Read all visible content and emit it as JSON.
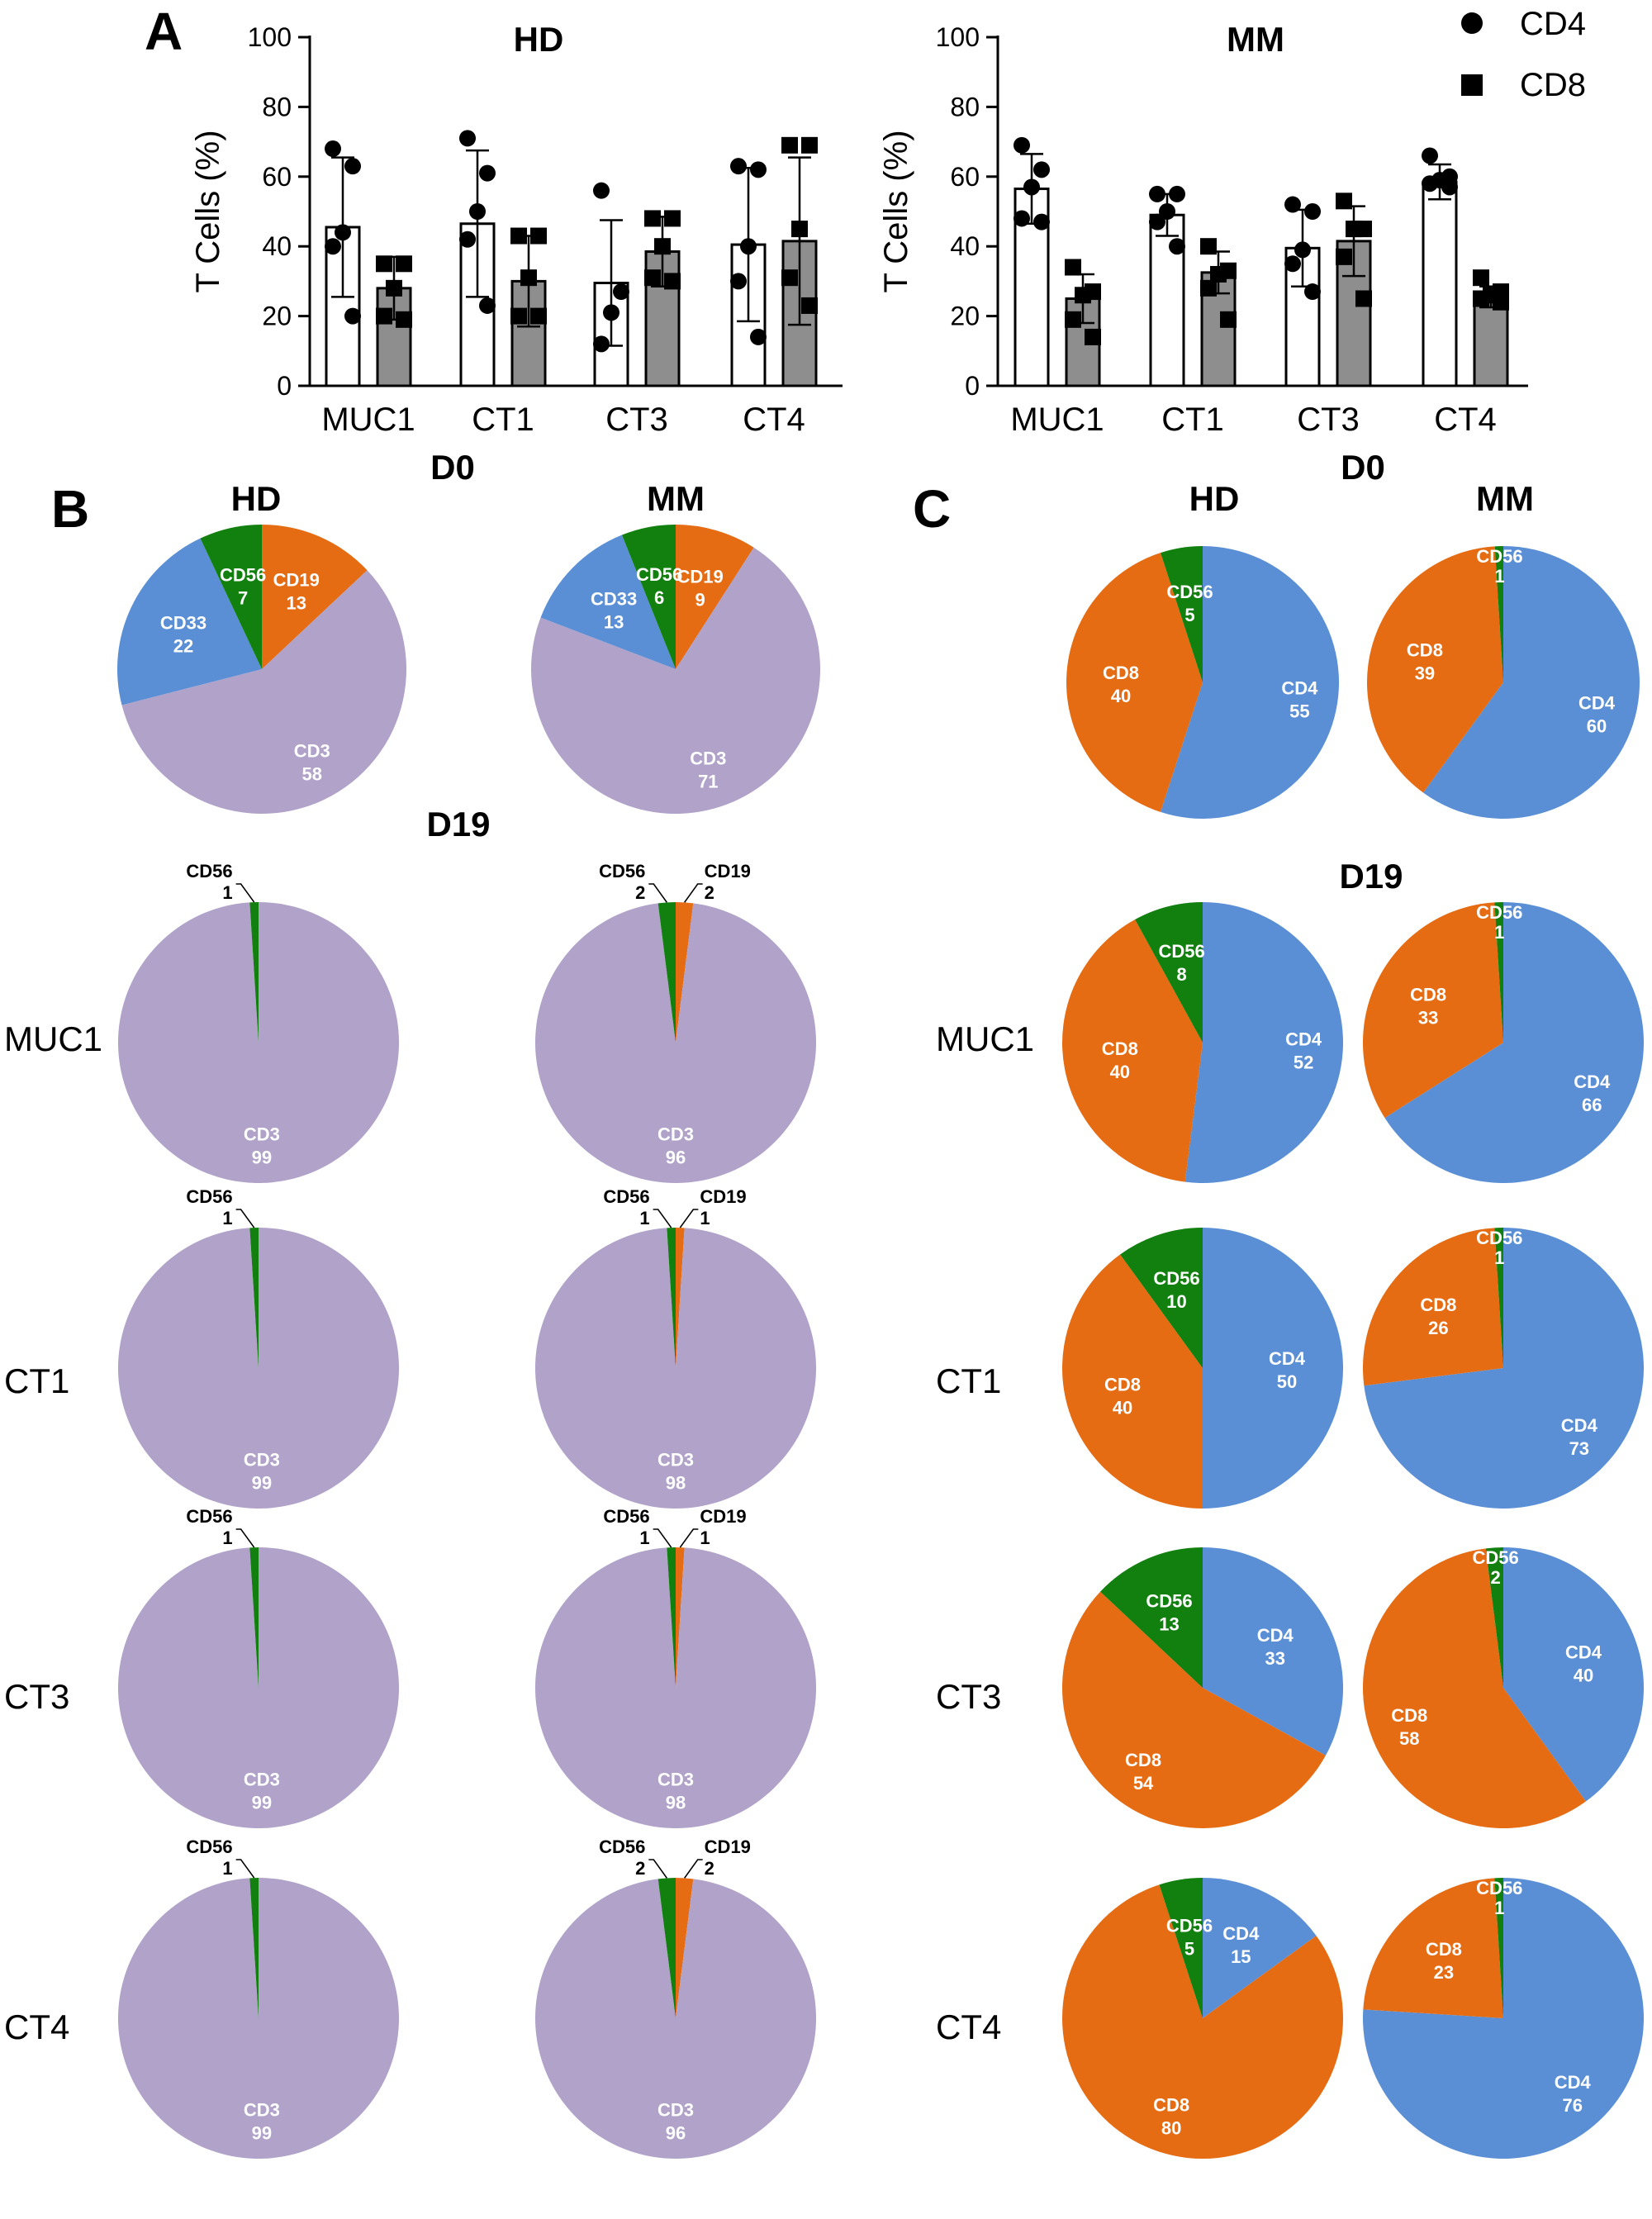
{
  "colors": {
    "CD3": "#b0a2c8",
    "CD33": "#5a8fd6",
    "CD56": "#11800f",
    "CD19": "#e56c12",
    "CD4": "#5a8fd6",
    "CD8": "#e56c12",
    "bar_cd4": "#ffffff",
    "bar_cd8": "#8e8e8e"
  },
  "panel_labels": [
    "A",
    "B",
    "C"
  ],
  "row_labels": [
    "MUC1",
    "CT1",
    "CT3",
    "CT4"
  ],
  "panel_a": {
    "legend": [
      "CD4",
      "CD8"
    ],
    "ylabel": "T Cells (%)"
  },
  "panel_b": {
    "d0_label": "D0",
    "d19_label": "D19",
    "col_labels": [
      "HD",
      "MM"
    ]
  },
  "panel_c": {
    "d0_label": "D0",
    "d19_label": "D19",
    "col_labels": [
      "HD",
      "MM"
    ]
  },
  "chart_data": [
    {
      "type": "bar",
      "title": "HD",
      "ylabel": "T Cells (%)",
      "ylim": [
        0,
        100
      ],
      "yticks": [
        0,
        20,
        40,
        60,
        80,
        100
      ],
      "categories": [
        "MUC1",
        "CT1",
        "CT3",
        "CT4"
      ],
      "series": [
        {
          "name": "CD4",
          "values": [
            45.5,
            46.5,
            29.5,
            40.5
          ],
          "sd": [
            20,
            21,
            18,
            22
          ],
          "points": [
            [
              68,
              63,
              44,
              40,
              20
            ],
            [
              71,
              61,
              50,
              42,
              23
            ],
            [
              56,
              27,
              21,
              12
            ],
            [
              63,
              62,
              40,
              30,
              14
            ]
          ]
        },
        {
          "name": "CD8",
          "values": [
            28,
            30,
            38.5,
            41.5
          ],
          "sd": [
            9,
            13,
            10,
            24
          ],
          "points": [
            [
              35,
              35,
              28,
              20,
              19
            ],
            [
              43,
              43,
              31,
              20,
              20
            ],
            [
              48,
              48,
              40,
              31,
              30
            ],
            [
              69,
              69,
              45,
              31,
              23
            ]
          ]
        }
      ]
    },
    {
      "type": "bar",
      "title": "MM",
      "ylabel": "T Cells (%)",
      "ylim": [
        0,
        100
      ],
      "yticks": [
        0,
        20,
        40,
        60,
        80,
        100
      ],
      "categories": [
        "MUC1",
        "CT1",
        "CT3",
        "CT4"
      ],
      "series": [
        {
          "name": "CD4",
          "values": [
            56.5,
            49,
            39.5,
            58.5
          ],
          "sd": [
            10,
            6,
            11,
            5
          ],
          "points": [
            [
              69,
              62,
              57,
              48,
              47
            ],
            [
              55,
              55,
              50,
              47,
              40
            ],
            [
              52,
              50,
              39,
              35,
              27
            ],
            [
              66,
              60,
              59,
              58,
              57
            ]
          ]
        },
        {
          "name": "CD8",
          "values": [
            25,
            32.5,
            41.5,
            25.5
          ],
          "sd": [
            7,
            6,
            10,
            3
          ],
          "points": [
            [
              34,
              27,
              26,
              19,
              14
            ],
            [
              40,
              33,
              32,
              28,
              19
            ],
            [
              53,
              45,
              45,
              37,
              25
            ],
            [
              31,
              27,
              26,
              25,
              24
            ]
          ]
        }
      ]
    },
    {
      "type": "pie",
      "panel": "B",
      "time": "D0",
      "group": "HD",
      "slices": [
        {
          "name": "CD19",
          "value": 13
        },
        {
          "name": "CD3",
          "value": 58
        },
        {
          "name": "CD33",
          "value": 22
        },
        {
          "name": "CD56",
          "value": 7
        }
      ]
    },
    {
      "type": "pie",
      "panel": "B",
      "time": "D0",
      "group": "MM",
      "slices": [
        {
          "name": "CD19",
          "value": 9
        },
        {
          "name": "CD3",
          "value": 71
        },
        {
          "name": "CD33",
          "value": 13
        },
        {
          "name": "CD56",
          "value": 6
        }
      ]
    },
    {
      "type": "pie",
      "panel": "B",
      "time": "D19",
      "row": "MUC1",
      "group": "HD",
      "slices": [
        {
          "name": "CD3",
          "value": 99
        },
        {
          "name": "CD56",
          "value": 1
        }
      ]
    },
    {
      "type": "pie",
      "panel": "B",
      "time": "D19",
      "row": "MUC1",
      "group": "MM",
      "slices": [
        {
          "name": "CD19",
          "value": 2
        },
        {
          "name": "CD3",
          "value": 96
        },
        {
          "name": "CD56",
          "value": 2
        }
      ]
    },
    {
      "type": "pie",
      "panel": "B",
      "time": "D19",
      "row": "CT1",
      "group": "HD",
      "slices": [
        {
          "name": "CD3",
          "value": 99
        },
        {
          "name": "CD56",
          "value": 1
        }
      ]
    },
    {
      "type": "pie",
      "panel": "B",
      "time": "D19",
      "row": "CT1",
      "group": "MM",
      "slices": [
        {
          "name": "CD19",
          "value": 1
        },
        {
          "name": "CD3",
          "value": 98
        },
        {
          "name": "CD56",
          "value": 1
        }
      ]
    },
    {
      "type": "pie",
      "panel": "B",
      "time": "D19",
      "row": "CT3",
      "group": "HD",
      "slices": [
        {
          "name": "CD3",
          "value": 99
        },
        {
          "name": "CD56",
          "value": 1
        }
      ]
    },
    {
      "type": "pie",
      "panel": "B",
      "time": "D19",
      "row": "CT3",
      "group": "MM",
      "slices": [
        {
          "name": "CD19",
          "value": 1
        },
        {
          "name": "CD3",
          "value": 98
        },
        {
          "name": "CD56",
          "value": 1
        }
      ]
    },
    {
      "type": "pie",
      "panel": "B",
      "time": "D19",
      "row": "CT4",
      "group": "HD",
      "slices": [
        {
          "name": "CD3",
          "value": 99
        },
        {
          "name": "CD56",
          "value": 1
        }
      ]
    },
    {
      "type": "pie",
      "panel": "B",
      "time": "D19",
      "row": "CT4",
      "group": "MM",
      "slices": [
        {
          "name": "CD19",
          "value": 2.0
        },
        {
          "name": "CD3",
          "value": 96
        },
        {
          "name": "CD56",
          "value": 2
        }
      ]
    },
    {
      "type": "pie",
      "panel": "C",
      "time": "D0",
      "group": "HD",
      "slices": [
        {
          "name": "CD4",
          "value": 55
        },
        {
          "name": "CD8",
          "value": 40
        },
        {
          "name": "CD56",
          "value": 5
        }
      ]
    },
    {
      "type": "pie",
      "panel": "C",
      "time": "D0",
      "group": "MM",
      "slices": [
        {
          "name": "CD4",
          "value": 60
        },
        {
          "name": "CD8",
          "value": 39
        },
        {
          "name": "CD56",
          "value": 1
        }
      ]
    },
    {
      "type": "pie",
      "panel": "C",
      "time": "D19",
      "row": "MUC1",
      "group": "HD",
      "slices": [
        {
          "name": "CD4",
          "value": 52
        },
        {
          "name": "CD8",
          "value": 40
        },
        {
          "name": "CD56",
          "value": 8
        }
      ]
    },
    {
      "type": "pie",
      "panel": "C",
      "time": "D19",
      "row": "MUC1",
      "group": "MM",
      "slices": [
        {
          "name": "CD4",
          "value": 66
        },
        {
          "name": "CD8",
          "value": 33
        },
        {
          "name": "CD56",
          "value": 1
        }
      ]
    },
    {
      "type": "pie",
      "panel": "C",
      "time": "D19",
      "row": "CT1",
      "group": "HD",
      "slices": [
        {
          "name": "CD4",
          "value": 50
        },
        {
          "name": "CD8",
          "value": 40
        },
        {
          "name": "CD56",
          "value": 10
        }
      ]
    },
    {
      "type": "pie",
      "panel": "C",
      "time": "D19",
      "row": "CT1",
      "group": "MM",
      "slices": [
        {
          "name": "CD4",
          "value": 73
        },
        {
          "name": "CD8",
          "value": 26
        },
        {
          "name": "CD56",
          "value": 1
        }
      ]
    },
    {
      "type": "pie",
      "panel": "C",
      "time": "D19",
      "row": "CT3",
      "group": "HD",
      "slices": [
        {
          "name": "CD4",
          "value": 33
        },
        {
          "name": "CD8",
          "value": 54
        },
        {
          "name": "CD56",
          "value": 13
        }
      ]
    },
    {
      "type": "pie",
      "panel": "C",
      "time": "D19",
      "row": "CT3",
      "group": "MM",
      "slices": [
        {
          "name": "CD4",
          "value": 40
        },
        {
          "name": "CD8",
          "value": 58
        },
        {
          "name": "CD56",
          "value": 2
        }
      ]
    },
    {
      "type": "pie",
      "panel": "C",
      "time": "D19",
      "row": "CT4",
      "group": "HD",
      "slices": [
        {
          "name": "CD4",
          "value": 15
        },
        {
          "name": "CD8",
          "value": 80
        },
        {
          "name": "CD56",
          "value": 5
        }
      ]
    },
    {
      "type": "pie",
      "panel": "C",
      "time": "D19",
      "row": "CT4",
      "group": "MM",
      "slices": [
        {
          "name": "CD4",
          "value": 76
        },
        {
          "name": "CD8",
          "value": 23
        },
        {
          "name": "CD56",
          "value": 1
        }
      ]
    }
  ]
}
